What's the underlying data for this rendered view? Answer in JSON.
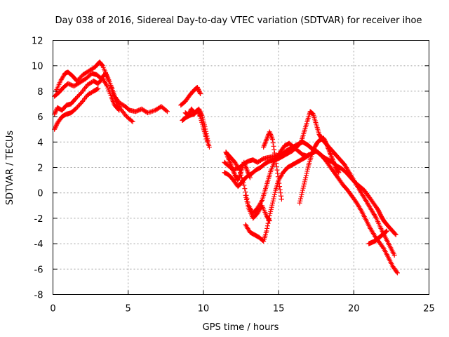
{
  "chart_data": {
    "type": "scatter",
    "title": "Day 038 of 2016, Sidereal Day-to-day VTEC variation (SDTVAR) for receiver ihoe",
    "xlabel": "GPS time / hours",
    "ylabel": "SDTVAR / TECUs",
    "xlim": [
      0,
      25
    ],
    "ylim": [
      -8,
      12
    ],
    "grid": true,
    "marker": "plus",
    "color": "#ff0000",
    "xticks": [
      "0",
      "5",
      "10",
      "15",
      "20",
      "25"
    ],
    "yticks": [
      "-8",
      "-6",
      "-4",
      "-2",
      "0",
      "2",
      "4",
      "6",
      "8",
      "10",
      "12"
    ],
    "series": [
      {
        "name": "s1",
        "x": [
          0.2,
          0.5,
          0.8,
          1.0,
          1.3,
          1.6,
          2.0,
          2.4,
          2.8,
          3.1,
          3.3,
          3.6,
          3.9,
          4.1,
          4.4,
          4.8,
          5.1,
          5.5,
          5.9,
          6.3,
          6.8,
          7.2,
          7.6
        ],
        "y": [
          8.0,
          8.8,
          9.4,
          9.5,
          9.2,
          8.8,
          9.3,
          9.6,
          9.9,
          10.3,
          10.0,
          9.2,
          8.3,
          7.6,
          7.1,
          6.8,
          6.5,
          6.4,
          6.6,
          6.3,
          6.5,
          6.8,
          6.4
        ]
      },
      {
        "name": "s2",
        "x": [
          0.1,
          0.4,
          0.7,
          1.0,
          1.4,
          1.8,
          2.2,
          2.6,
          2.9,
          3.2,
          3.5,
          3.8,
          4.0,
          4.2,
          4.5,
          4.9,
          5.3
        ],
        "y": [
          7.6,
          7.9,
          8.3,
          8.6,
          8.4,
          8.7,
          9.0,
          9.4,
          9.3,
          9.0,
          9.4,
          8.6,
          7.8,
          7.2,
          6.6,
          6.0,
          5.6
        ]
      },
      {
        "name": "s3",
        "x": [
          0.1,
          0.3,
          0.6,
          0.9,
          1.2,
          1.5,
          1.9,
          2.3,
          2.7,
          3.0,
          3.3,
          3.6,
          3.9,
          4.1,
          4.4
        ],
        "y": [
          6.2,
          6.7,
          6.5,
          6.9,
          7.0,
          7.4,
          7.9,
          8.5,
          8.8,
          8.6,
          9.0,
          8.4,
          7.5,
          6.9,
          6.5
        ]
      },
      {
        "name": "s4",
        "x": [
          0.1,
          0.3,
          0.6,
          0.9,
          1.2,
          1.5,
          1.9,
          2.3,
          2.7,
          3.0
        ],
        "y": [
          5.0,
          5.5,
          6.0,
          6.2,
          6.3,
          6.6,
          7.1,
          7.7,
          8.0,
          8.2
        ]
      },
      {
        "name": "s5",
        "x": [
          8.8,
          9.0,
          9.2,
          9.4,
          9.6,
          9.8,
          10.0,
          10.2,
          10.4
        ],
        "y": [
          6.3,
          6.1,
          6.6,
          6.3,
          6.5,
          6.0,
          5.1,
          4.3,
          3.6
        ]
      },
      {
        "name": "s6",
        "x": [
          8.6,
          8.8,
          9.1,
          9.4,
          9.7,
          9.9,
          10.1,
          10.3
        ],
        "y": [
          5.7,
          5.9,
          6.1,
          6.2,
          6.6,
          6.1,
          5.2,
          4.1
        ]
      },
      {
        "name": "s7",
        "x": [
          8.5,
          8.8,
          9.1,
          9.4,
          9.6,
          9.8
        ],
        "y": [
          6.9,
          7.2,
          7.7,
          8.1,
          8.3,
          7.8
        ]
      },
      {
        "name": "s8",
        "x": [
          11.4,
          11.7,
          12.0,
          12.4,
          12.7,
          13.0,
          13.3,
          13.6,
          14.0,
          14.4,
          14.8,
          15.2,
          15.5,
          15.8,
          16.1,
          16.4,
          16.6,
          16.9,
          17.1,
          17.3,
          17.6,
          17.8,
          18.0,
          18.3,
          18.6,
          18.9,
          19.2,
          19.5,
          19.8,
          20.1,
          20.4,
          20.7,
          21.0,
          21.3,
          21.6,
          21.8,
          22.0,
          22.2,
          22.5,
          22.8
        ],
        "y": [
          2.4,
          2.1,
          1.8,
          2.0,
          2.3,
          2.5,
          2.6,
          2.4,
          2.7,
          2.8,
          2.9,
          3.0,
          3.3,
          3.5,
          3.7,
          3.9,
          4.0,
          3.8,
          3.6,
          3.4,
          3.2,
          3.0,
          2.8,
          2.6,
          2.4,
          2.1,
          1.9,
          1.6,
          1.2,
          0.8,
          0.5,
          0.2,
          -0.3,
          -0.8,
          -1.3,
          -1.8,
          -2.2,
          -2.5,
          -2.9,
          -3.3
        ]
      },
      {
        "name": "s9",
        "x": [
          11.4,
          11.7,
          12.0,
          12.3,
          12.6,
          12.9,
          13.2,
          13.5,
          13.8,
          14.1,
          14.4,
          14.7,
          15.0,
          15.3,
          15.6,
          15.9,
          16.2,
          16.5,
          16.7,
          16.9,
          17.1,
          17.3,
          17.5,
          17.7,
          17.9,
          18.2,
          18.5,
          18.8,
          19.1,
          19.4,
          19.7,
          20.0,
          20.3,
          20.6,
          20.9,
          21.2,
          21.5,
          21.8,
          22.1,
          22.4,
          22.7
        ],
        "y": [
          1.6,
          1.4,
          1.0,
          0.5,
          0.9,
          1.3,
          1.5,
          1.8,
          2.0,
          2.3,
          2.5,
          2.6,
          2.7,
          2.9,
          3.1,
          3.3,
          3.6,
          4.0,
          4.8,
          5.6,
          6.4,
          6.2,
          5.4,
          4.6,
          4.2,
          3.8,
          3.4,
          3.0,
          2.6,
          2.2,
          1.6,
          1.0,
          0.4,
          -0.2,
          -0.8,
          -1.4,
          -2.0,
          -2.8,
          -3.5,
          -4.2,
          -4.9
        ]
      },
      {
        "name": "s10",
        "x": [
          11.5,
          11.8,
          12.1,
          12.4,
          12.7,
          13.0,
          13.3,
          13.6,
          13.9,
          14.1,
          14.3,
          14.5,
          14.8,
          15.1,
          15.4,
          15.7,
          16.0,
          16.3,
          16.6,
          16.9,
          17.2,
          17.5,
          17.8,
          18.1,
          18.4,
          18.7,
          19.0,
          19.3,
          19.6,
          19.9,
          20.2,
          20.5,
          20.8,
          21.1,
          21.4,
          21.7,
          22.0,
          22.3,
          22.6,
          22.9
        ],
        "y": [
          3.2,
          2.8,
          2.4,
          1.8,
          0.6,
          -1.0,
          -1.6,
          -1.2,
          -0.6,
          0.2,
          1.0,
          1.8,
          2.6,
          3.2,
          3.7,
          3.9,
          3.6,
          3.3,
          3.0,
          2.9,
          3.1,
          3.3,
          3.0,
          2.6,
          2.1,
          1.6,
          1.1,
          0.6,
          0.2,
          -0.3,
          -0.8,
          -1.4,
          -2.1,
          -2.8,
          -3.4,
          -3.9,
          -4.4,
          -5.1,
          -5.8,
          -6.3
        ]
      },
      {
        "name": "s11",
        "x": [
          12.8,
          13.1,
          13.4,
          13.7,
          14.0,
          14.2,
          14.4,
          14.6,
          14.8,
          15.0,
          15.3,
          15.6,
          15.9,
          16.2,
          16.5,
          16.8,
          17.0
        ],
        "y": [
          -2.5,
          -3.1,
          -3.3,
          -3.5,
          -3.8,
          -3.0,
          -1.8,
          -0.8,
          0.2,
          1.0,
          1.6,
          2.0,
          2.2,
          2.4,
          2.6,
          2.8,
          3.0
        ]
      },
      {
        "name": "s12",
        "x": [
          14.0,
          14.2,
          14.4,
          14.6,
          14.8,
          15.0,
          15.2
        ],
        "y": [
          3.6,
          4.2,
          4.8,
          4.2,
          2.6,
          1.0,
          -0.5
        ]
      },
      {
        "name": "s13",
        "x": [
          16.4,
          16.6,
          16.8,
          17.0,
          17.2,
          17.4,
          17.6,
          17.8,
          18.0,
          18.2,
          18.4,
          18.6,
          18.8,
          19.0
        ],
        "y": [
          -0.8,
          0.2,
          1.2,
          2.2,
          3.0,
          3.6,
          4.0,
          4.2,
          4.3,
          3.8,
          3.2,
          2.6,
          2.0,
          1.6
        ]
      },
      {
        "name": "s14",
        "x": [
          12.8,
          13.0,
          13.3,
          13.6,
          13.9,
          14.2,
          14.4
        ],
        "y": [
          -0.2,
          -1.2,
          -2.0,
          -1.6,
          -1.0,
          -1.8,
          -2.2
        ]
      },
      {
        "name": "s15",
        "x": [
          21.0,
          21.2,
          21.4,
          21.6,
          21.8,
          22.0,
          22.2
        ],
        "y": [
          -4.0,
          -3.9,
          -3.8,
          -3.6,
          -3.4,
          -3.2,
          -3.0
        ]
      },
      {
        "name": "s16",
        "x": [
          11.5,
          11.7,
          11.9,
          12.1,
          12.3,
          12.5,
          12.7,
          12.9,
          13.1
        ],
        "y": [
          3.2,
          2.6,
          2.0,
          1.4,
          1.0,
          1.6,
          2.4,
          1.8,
          1.2
        ]
      }
    ]
  },
  "page": {
    "title": "Day 038 of 2016, Sidereal Day-to-day VTEC variation (SDTVAR) for receiver ihoe",
    "xlabel": "GPS time / hours",
    "ylabel": "SDTVAR / TECUs"
  }
}
